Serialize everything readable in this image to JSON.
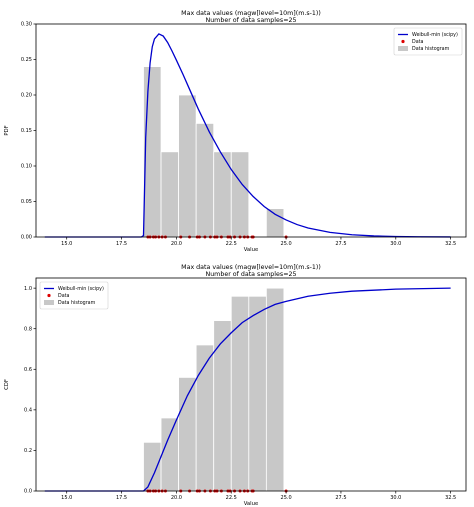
{
  "chart_data": [
    {
      "type": "histogram+line+scatter",
      "title_line1": "Max data values (magw[level=10m](m.s-1))",
      "title_line2": "Number of data samples=25",
      "xlabel": "Value",
      "ylabel": "PDF",
      "xlim": [
        13.6,
        33.2
      ],
      "ylim": [
        0.0,
        0.3
      ],
      "x_ticks": [
        15.0,
        17.5,
        20.0,
        22.5,
        25.0,
        27.5,
        30.0,
        32.5
      ],
      "x_tick_labels": [
        "15.0",
        "17.5",
        "20.0",
        "22.5",
        "25.0",
        "27.5",
        "30.0",
        "32.5"
      ],
      "y_ticks": [
        0.0,
        0.05,
        0.1,
        0.15,
        0.2,
        0.25,
        0.3
      ],
      "y_tick_labels": [
        "0.00",
        "0.05",
        "0.10",
        "0.15",
        "0.20",
        "0.25",
        "0.30"
      ],
      "legend_position": "top-right",
      "legend": [
        "Weibull-min (scipy)",
        "Data",
        "Data histogram"
      ],
      "histogram": {
        "bin_edges": [
          18.5,
          19.3,
          20.1,
          20.9,
          21.7,
          22.5,
          23.3,
          24.1,
          24.9
        ],
        "values": [
          0.24,
          0.12,
          0.2,
          0.16,
          0.12,
          0.12,
          0.0,
          0.04
        ],
        "color": "#c8c8c8"
      },
      "curve": {
        "name": "Weibull-min (scipy)",
        "color": "#0000cc",
        "x": [
          14.0,
          18.4,
          18.5,
          18.55,
          18.6,
          18.7,
          18.8,
          18.9,
          19.0,
          19.2,
          19.4,
          19.6,
          19.8,
          20.0,
          20.3,
          20.6,
          21.0,
          21.5,
          22.0,
          22.5,
          23.0,
          23.5,
          24.0,
          24.5,
          25.0,
          25.5,
          26.0,
          27.0,
          28.0,
          29.0,
          30.0,
          31.0,
          32.5
        ],
        "y": [
          0.0,
          0.0,
          0.002,
          0.07,
          0.14,
          0.205,
          0.245,
          0.268,
          0.279,
          0.286,
          0.283,
          0.274,
          0.262,
          0.249,
          0.229,
          0.208,
          0.18,
          0.148,
          0.12,
          0.095,
          0.074,
          0.057,
          0.043,
          0.032,
          0.024,
          0.0175,
          0.0127,
          0.0065,
          0.0032,
          0.0015,
          0.0007,
          0.0003,
          0.0001
        ]
      },
      "points": {
        "name": "Data",
        "color": "#dd0000",
        "x": [
          18.7,
          18.8,
          18.95,
          19.05,
          19.2,
          19.35,
          19.5,
          20.2,
          20.6,
          20.95,
          21.05,
          21.3,
          21.55,
          21.75,
          21.85,
          22.05,
          22.35,
          22.45,
          22.65,
          22.9,
          23.1,
          23.25,
          23.45,
          23.5,
          25.0
        ],
        "y": 0.0
      }
    },
    {
      "type": "histogram+line+scatter",
      "title_line1": "Max data values (magw[level=10m](m.s-1))",
      "title_line2": "Number of data samples=25",
      "xlabel": "Value",
      "ylabel": "CDF",
      "xlim": [
        13.6,
        33.2
      ],
      "ylim": [
        0.0,
        1.05
      ],
      "x_ticks": [
        15.0,
        17.5,
        20.0,
        22.5,
        25.0,
        27.5,
        30.0,
        32.5
      ],
      "x_tick_labels": [
        "15.0",
        "17.5",
        "20.0",
        "22.5",
        "25.0",
        "27.5",
        "30.0",
        "32.5"
      ],
      "y_ticks": [
        0.0,
        0.2,
        0.4,
        0.6,
        0.8,
        1.0
      ],
      "y_tick_labels": [
        "0.0",
        "0.2",
        "0.4",
        "0.6",
        "0.8",
        "1.0"
      ],
      "legend_position": "top-left",
      "legend": [
        "Weibull-min (scipy)",
        "Data",
        "Data histogram"
      ],
      "histogram": {
        "bin_edges": [
          18.5,
          19.3,
          20.1,
          20.9,
          21.7,
          22.5,
          23.3,
          24.1,
          24.9
        ],
        "values": [
          0.24,
          0.36,
          0.56,
          0.72,
          0.84,
          0.96,
          0.96,
          1.0
        ],
        "color": "#c8c8c8"
      },
      "curve": {
        "name": "Weibull-min (scipy)",
        "color": "#0000cc",
        "x": [
          14.0,
          18.4,
          18.5,
          18.7,
          19.0,
          19.3,
          19.6,
          20.0,
          20.5,
          21.0,
          21.5,
          22.0,
          22.5,
          23.0,
          23.5,
          24.0,
          24.5,
          25.0,
          26.0,
          27.0,
          28.0,
          30.0,
          32.5
        ],
        "y": [
          0.0,
          0.0,
          0.0,
          0.02,
          0.09,
          0.17,
          0.25,
          0.35,
          0.47,
          0.57,
          0.655,
          0.725,
          0.78,
          0.83,
          0.865,
          0.895,
          0.92,
          0.935,
          0.96,
          0.975,
          0.985,
          0.995,
          1.0
        ]
      },
      "points": {
        "name": "Data",
        "color": "#dd0000",
        "x": [
          18.7,
          18.8,
          18.95,
          19.05,
          19.2,
          19.35,
          19.5,
          20.2,
          20.6,
          20.95,
          21.05,
          21.3,
          21.55,
          21.75,
          21.85,
          22.05,
          22.35,
          22.45,
          22.65,
          22.9,
          23.1,
          23.25,
          23.45,
          23.5,
          25.0
        ],
        "y": 0.0
      }
    }
  ]
}
